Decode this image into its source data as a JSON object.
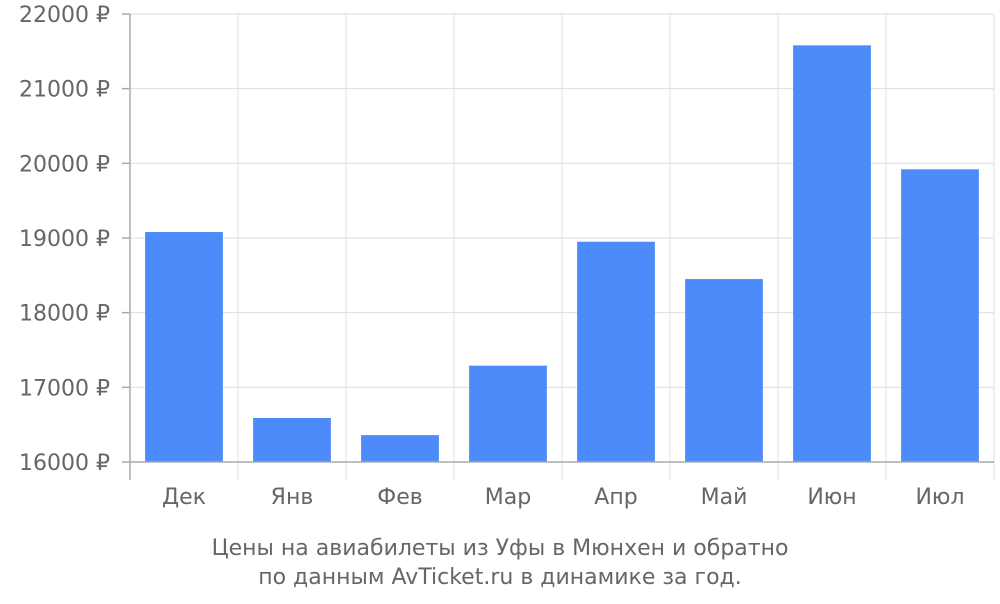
{
  "chart_data": {
    "type": "bar",
    "categories": [
      "Дек",
      "Янв",
      "Фев",
      "Мар",
      "Апр",
      "Май",
      "Июн",
      "Июл"
    ],
    "values": [
      19080,
      16590,
      16360,
      17290,
      18950,
      18450,
      21580,
      19920
    ],
    "ylim": [
      16000,
      22000
    ],
    "yticks": [
      16000,
      17000,
      18000,
      19000,
      20000,
      21000,
      22000
    ],
    "ytick_labels": [
      "16000 ₽",
      "17000 ₽",
      "18000 ₽",
      "19000 ₽",
      "20000 ₽",
      "21000 ₽",
      "22000 ₽"
    ],
    "grid": true,
    "legend": false,
    "bar_color": "#4c8bf9",
    "caption_lines": [
      "Цены на авиабилеты из Уфы в Мюнхен и обратно",
      "по данным AvTicket.ru в динамике за год."
    ]
  }
}
